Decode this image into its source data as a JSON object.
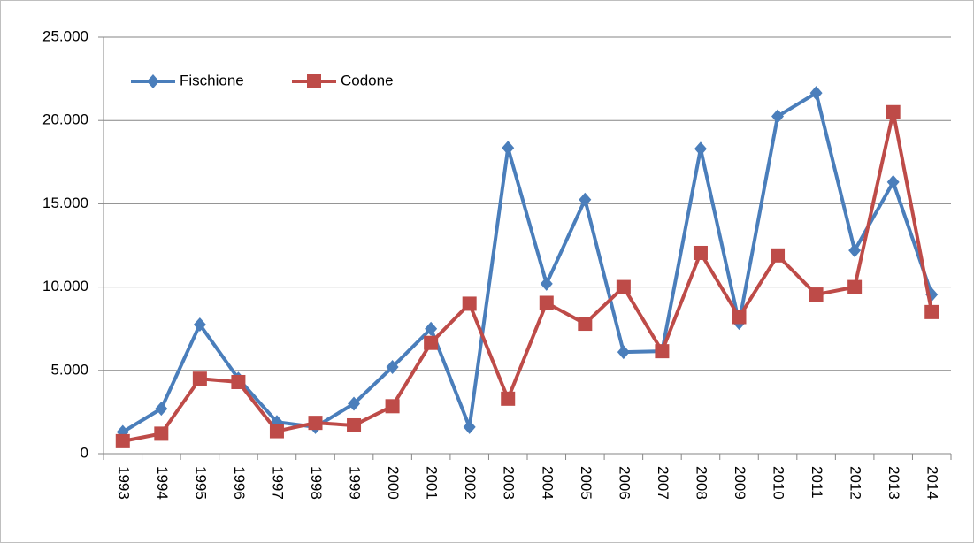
{
  "chart_data": {
    "type": "line",
    "categories": [
      "1993",
      "1994",
      "1995",
      "1996",
      "1997",
      "1998",
      "1999",
      "2000",
      "2001",
      "2002",
      "2003",
      "2004",
      "2005",
      "2006",
      "2007",
      "2008",
      "2009",
      "2010",
      "2011",
      "2012",
      "2013",
      "2014"
    ],
    "series": [
      {
        "name": "Fischione",
        "color": "#4a7ebb",
        "marker": "diamond",
        "values": [
          1300,
          2700,
          7750,
          4500,
          1900,
          1600,
          3000,
          5200,
          7500,
          1600,
          18350,
          10200,
          15250,
          6100,
          6150,
          18300,
          7850,
          20250,
          21650,
          12200,
          16300,
          9550
        ]
      },
      {
        "name": "Codone",
        "color": "#be4b48",
        "marker": "square",
        "values": [
          750,
          1200,
          4500,
          4300,
          1350,
          1850,
          1700,
          2850,
          6650,
          9000,
          3300,
          9050,
          7800,
          10000,
          6150,
          12050,
          8200,
          11900,
          9550,
          10000,
          20500,
          8500
        ]
      }
    ],
    "ylim": [
      0,
      25000
    ],
    "yticks": [
      0,
      {
        "value": 5000,
        "label": "5.000"
      },
      {
        "value": 10000,
        "label": "10.000"
      },
      {
        "value": 15000,
        "label": "15.000"
      },
      {
        "value": 20000,
        "label": "20.000"
      },
      {
        "value": 25000,
        "label": "25.000"
      }
    ],
    "grid": true,
    "legend": "top-left"
  }
}
